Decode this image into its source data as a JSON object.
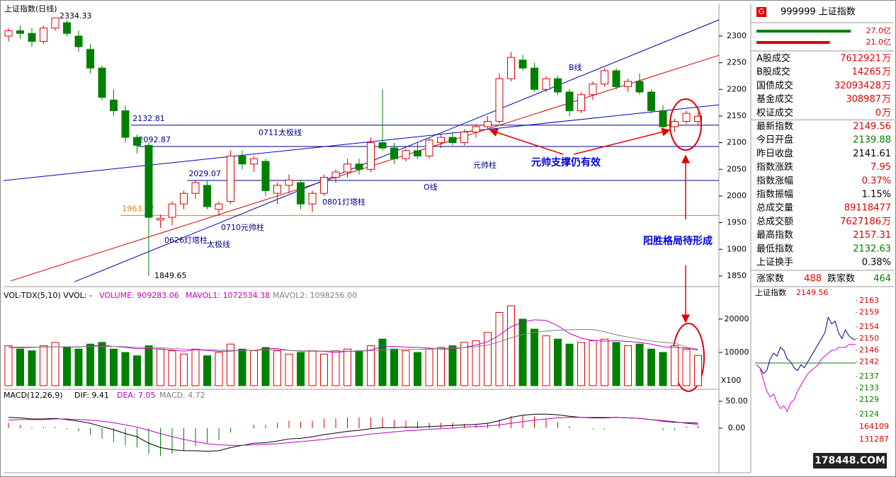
{
  "chart_data": [
    {
      "type": "candlestick",
      "title": "上证指数(日线)",
      "up_color": "#e00000",
      "down_color": "#008000",
      "open": [
        2300,
        2310,
        2305,
        2290,
        2315,
        2325,
        2300,
        2275,
        2240,
        2180,
        2160,
        2110,
        2095,
        1955,
        1960,
        1985,
        2005,
        2020,
        1975,
        1990,
        2075,
        2060,
        2065,
        2005,
        2020,
        2025,
        1985,
        2005,
        2035,
        2045,
        2060,
        2050,
        2100,
        2090,
        2070,
        2085,
        2075,
        2100,
        2110,
        2100,
        2120,
        2130,
        2140,
        2220,
        2255,
        2240,
        2200,
        2220,
        2195,
        2160,
        2190,
        2210,
        2235,
        2205,
        2215,
        2195,
        2160,
        2130,
        2140,
        2139.88
      ],
      "high": [
        2315,
        2320,
        2315,
        2320,
        2334.33,
        2330,
        2310,
        2285,
        2245,
        2200,
        2170,
        2115,
        2100,
        1965,
        1990,
        2010,
        2030,
        2029.07,
        1990,
        2085,
        2085,
        2075,
        2070,
        2025,
        2040,
        2030,
        2010,
        2040,
        2050,
        2070,
        2070,
        2110,
        2200,
        2100,
        2090,
        2100,
        2110,
        2115,
        2120,
        2125,
        2135,
        2150,
        2230,
        2270,
        2265,
        2250,
        2225,
        2225,
        2200,
        2195,
        2215,
        2240,
        2240,
        2220,
        2230,
        2200,
        2170,
        2145,
        2160,
        2157.31
      ],
      "low": [
        2290,
        2295,
        2280,
        2285,
        2310,
        2300,
        2270,
        2230,
        2180,
        2150,
        2100,
        2080,
        1849.65,
        1940,
        1945,
        1975,
        1995,
        1975,
        1963,
        1985,
        2050,
        2045,
        2000,
        1985,
        2005,
        1975,
        1970,
        2000,
        2025,
        2035,
        2040,
        2045,
        2085,
        2060,
        2065,
        2070,
        2070,
        2090,
        2095,
        2095,
        2110,
        2125,
        2135,
        2215,
        2235,
        2195,
        2195,
        2190,
        2150,
        2155,
        2180,
        2205,
        2200,
        2195,
        2190,
        2155,
        2125,
        2120,
        2135,
        2132.63
      ],
      "close": [
        2310,
        2305,
        2290,
        2315,
        2334,
        2305,
        2280,
        2240,
        2185,
        2160,
        2110,
        2095,
        1960,
        1958,
        1985,
        2005,
        2025,
        1980,
        1985,
        2075,
        2060,
        2070,
        2010,
        2020,
        2030,
        1985,
        2005,
        2035,
        2045,
        2060,
        2050,
        2100,
        2090,
        2070,
        2085,
        2075,
        2105,
        2110,
        2100,
        2120,
        2130,
        2140,
        2220,
        2260,
        2240,
        2200,
        2220,
        2195,
        2160,
        2190,
        2210,
        2235,
        2205,
        2215,
        2195,
        2160,
        2130,
        2140,
        2155,
        2149.56
      ],
      "ylim": [
        1830,
        2361
      ],
      "yticks": [
        1850,
        1900,
        1950,
        2000,
        2050,
        2100,
        2150,
        2200,
        2250,
        2300
      ],
      "levels": [
        {
          "value": 2132.81,
          "from": 10.5,
          "color": "#000080"
        },
        {
          "value": 2092.87,
          "from": 11,
          "color": "#000080"
        },
        {
          "value": 2029.07,
          "from": 15.3,
          "color": "#000080"
        },
        {
          "value": 1963.57,
          "from": 9.6,
          "color": "#e08000"
        }
      ],
      "trendlines": [
        {
          "color": "#d00000",
          "from": [
            0.18,
            1840.7
          ],
          "to": [
            60.8,
            2264
          ]
        },
        {
          "color": "#0000c0",
          "from": [
            5.64,
            1839
          ],
          "to": [
            60.8,
            2330.5
          ]
        },
        {
          "color": "#0000c0",
          "from": [
            -0.42,
            2029
          ],
          "to": [
            60.8,
            2171
          ]
        }
      ],
      "annotations": [
        {
          "text": "0711太极线",
          "color": "#000080"
        },
        {
          "text": "0801灯塔柱",
          "color": "#000080"
        },
        {
          "text": "0710元帅柱",
          "color": "#000080"
        },
        {
          "text": "0626灯塔柱",
          "color": "#000080"
        },
        {
          "text": "太极线",
          "color": "#000080"
        },
        {
          "text": "元帅柱",
          "color": "#000080"
        },
        {
          "text": "O线",
          "color": "#000080"
        },
        {
          "text": "B线",
          "color": "#000080"
        },
        {
          "text": "元帅支撑仍有效",
          "color": "#0000e0"
        },
        {
          "text": "阳胜格局待形成",
          "color": "#0000e0"
        }
      ]
    },
    {
      "type": "volume",
      "legend": [
        {
          "text": "VOL-TDX(5,10) VVOL: -",
          "color": "#000000"
        },
        {
          "text": "VOLUME: 909283.06",
          "color": "#c000c0"
        },
        {
          "text": "MAVOL1: 1072534.38",
          "color": "#c000c0"
        },
        {
          "text": "MAVOL2: 1098256.00",
          "color": "#808080"
        }
      ],
      "unit_label": "X100",
      "ylim": [
        0,
        28700
      ],
      "yticks": [
        10000,
        20000
      ],
      "values": [
        12000,
        11000,
        10500,
        12000,
        13000,
        11500,
        11000,
        12500,
        13000,
        11000,
        10000,
        9000,
        12000,
        11000,
        10500,
        9500,
        11000,
        9000,
        10000,
        12500,
        11000,
        10500,
        11500,
        10500,
        9500,
        10000,
        10500,
        9500,
        10500,
        11000,
        10500,
        12000,
        14000,
        11000,
        10500,
        10000,
        11000,
        11500,
        12000,
        13000,
        13500,
        16000,
        22000,
        24000,
        20000,
        17000,
        15000,
        14000,
        12500,
        13000,
        13500,
        14000,
        13000,
        12000,
        12500,
        11000,
        10000,
        12000,
        11000,
        9092.83
      ],
      "series": [
        {
          "name": "MAVOL1",
          "color": "#c000c0",
          "values": [
            11500,
            11400,
            11500,
            11600,
            11700,
            11600,
            11600,
            12000,
            12200,
            11800,
            11500,
            11100,
            11100,
            11000,
            10700,
            10400,
            10800,
            10600,
            10300,
            10400,
            10700,
            10600,
            11100,
            11200,
            10600,
            10400,
            10400,
            10300,
            10000,
            10300,
            10300,
            10700,
            11700,
            11800,
            11600,
            11500,
            11300,
            11000,
            11000,
            11500,
            12200,
            13200,
            15200,
            17700,
            19100,
            19800,
            19600,
            18000,
            15700,
            14300,
            13600,
            13400,
            13500,
            13300,
            13000,
            12500,
            11700,
            11500,
            11300,
            10725.34
          ]
        },
        {
          "name": "MAVOL2",
          "color": "#808080",
          "values": [
            11600,
            11600,
            11600,
            11600,
            11700,
            11700,
            11700,
            11800,
            11800,
            11800,
            11700,
            11500,
            11500,
            11400,
            11200,
            11000,
            10900,
            10800,
            10700,
            10600,
            10600,
            10600,
            10800,
            10800,
            10600,
            10500,
            10500,
            10400,
            10400,
            10400,
            10400,
            10500,
            10700,
            10800,
            10900,
            10900,
            11000,
            11200,
            11300,
            11500,
            11700,
            12200,
            13200,
            14400,
            15400,
            16000,
            16400,
            16700,
            16800,
            16900,
            16900,
            16200,
            15300,
            14600,
            14000,
            13400,
            13000,
            12800,
            11600,
            10982.56
          ]
        }
      ]
    },
    {
      "type": "macd",
      "legend": [
        {
          "text": "MACD(12,26,9)",
          "color": "#000000"
        },
        {
          "text": "DIF: 9.41",
          "color": "#000000"
        },
        {
          "text": "DEA: 7.05",
          "color": "#c000c0"
        },
        {
          "text": "MACD: 4.72",
          "color": "#808080"
        }
      ],
      "ylim": [
        -82.9,
        69.7
      ],
      "yticks": [
        {
          "value": 0,
          "label": "0.00"
        },
        {
          "value": 50,
          "label": "50.00"
        }
      ],
      "up_color": "#e00000",
      "down_color": "#008000",
      "values": [
        10,
        6,
        2,
        2,
        2,
        -2,
        -6,
        -12,
        -20,
        -26,
        -32,
        -36,
        -48,
        -52,
        -48,
        -42,
        -34,
        -28,
        -22,
        -8,
        0,
        6,
        6,
        10,
        14,
        12,
        14,
        18,
        18,
        20,
        20,
        20,
        20,
        16,
        14,
        12,
        10,
        10,
        10,
        8,
        8,
        10,
        16,
        22,
        24,
        22,
        18,
        12,
        4,
        0,
        -2,
        -2,
        0,
        0,
        0,
        0,
        -4,
        -4,
        3,
        4.72
      ],
      "series": [
        {
          "name": "DIF",
          "color": "#000000",
          "values": [
            20,
            19,
            17,
            17,
            18,
            16,
            13,
            9,
            3,
            -3,
            -10,
            -16,
            -28,
            -36,
            -40,
            -42,
            -42,
            -43,
            -42,
            -36,
            -32,
            -28,
            -27,
            -24,
            -20,
            -19,
            -16,
            -12,
            -9,
            -6,
            -4,
            -1,
            1,
            1,
            2,
            2,
            3,
            4,
            5,
            6,
            7,
            9,
            14,
            20,
            24,
            26,
            26,
            25,
            22,
            20,
            19,
            19,
            20,
            19,
            18,
            16,
            13,
            11,
            10,
            9.41
          ]
        },
        {
          "name": "DEA",
          "color": "#c000c0",
          "values": [
            15,
            16,
            16,
            16,
            17,
            17,
            16,
            15,
            13,
            10,
            6,
            2,
            -4,
            -10,
            -16,
            -21,
            -25,
            -29,
            -31,
            -32,
            -32,
            -31,
            -30,
            -29,
            -27,
            -25,
            -23,
            -21,
            -18,
            -16,
            -14,
            -11,
            -9,
            -7,
            -5,
            -4,
            -2,
            -1,
            0,
            2,
            3,
            4,
            6,
            9,
            12,
            15,
            17,
            19,
            20,
            20,
            20,
            20,
            20,
            19,
            18,
            16,
            14,
            12,
            9,
            7.05
          ]
        }
      ]
    },
    {
      "type": "line",
      "title": "上证指数",
      "last": 2149.56,
      "base": 2141.61,
      "ylim": [
        2120.5,
        2165.4
      ],
      "yticks": [
        2163,
        2159,
        2154,
        2150,
        2146,
        2142,
        2137,
        2133,
        2129,
        2124
      ],
      "y2lim": [
        45590,
        169700
      ],
      "y2ticks": [
        164109,
        131287
      ],
      "series": [
        {
          "color": "#000080",
          "values": [
            2141,
            2140,
            2138,
            2139,
            2143,
            2145,
            2144,
            2147,
            2146,
            2143,
            2142,
            2140,
            2139,
            2141,
            2140,
            2142,
            2144,
            2146,
            2148,
            2150,
            2152,
            2157.31,
            2155,
            2156,
            2152,
            2150,
            2153,
            2151,
            2150,
            2149.56
          ]
        },
        {
          "color": "#e000e0",
          "values": [
            2141,
            2140,
            2136,
            2132,
            2130,
            2131,
            2128,
            2126,
            2127,
            2125,
            2128,
            2129,
            2132,
            2134,
            2136,
            2138,
            2139,
            2140,
            2141,
            2143,
            2144,
            2145,
            2146,
            2146,
            2147,
            2147,
            2147,
            2148,
            2148,
            2148
          ]
        }
      ]
    }
  ],
  "quote_panel": {
    "badge": "G",
    "code_name": "999999 上证指数",
    "bars": {
      "values": [
        27.0,
        21.0
      ],
      "value_labels": [
        "27.0亿",
        "21.0亿"
      ],
      "colors": [
        "#008000",
        "#e00000"
      ],
      "xlim": [
        0,
        30
      ]
    },
    "rows": [
      {
        "label": "A股成交",
        "value": "7612921",
        "unit": "万",
        "color": "#e00000"
      },
      {
        "label": "B股成交",
        "value": "14265",
        "unit": "万",
        "color": "#e00000"
      },
      {
        "label": "国债成交",
        "value": "32093428",
        "unit": "万",
        "color": "#e00000"
      },
      {
        "label": "基金成交",
        "value": "308987",
        "unit": "万",
        "color": "#e00000"
      },
      {
        "label": "权证成交",
        "value": "0",
        "unit": "万",
        "color": "#e00000"
      },
      {
        "label": "最新指数",
        "value": "2149.56",
        "color": "#e00000"
      },
      {
        "label": "今日开盘",
        "value": "2139.88",
        "color": "#008000"
      },
      {
        "label": "昨日收盘",
        "value": "2141.61",
        "color": "#000000"
      },
      {
        "label": "指数涨跌",
        "value": "7.95",
        "color": "#e00000"
      },
      {
        "label": "指数涨幅",
        "value": "0.37%",
        "color": "#e00000"
      },
      {
        "label": "指数振幅",
        "value": "1.15%",
        "color": "#000000"
      },
      {
        "label": "总成交量",
        "value": "89118477",
        "color": "#e00000"
      },
      {
        "label": "总成交额",
        "value": "7627186",
        "unit": "万",
        "color": "#e00000"
      },
      {
        "label": "最高指数",
        "value": "2157.31",
        "color": "#e00000"
      },
      {
        "label": "最低指数",
        "value": "2132.63",
        "color": "#008000"
      },
      {
        "label": "上证换手",
        "value": "0.38%",
        "color": "#000000"
      }
    ],
    "breadth": {
      "up_label": "涨家数",
      "up": "488",
      "down_label": "跌家数",
      "down": "464"
    }
  },
  "watermark": "178448.COM"
}
